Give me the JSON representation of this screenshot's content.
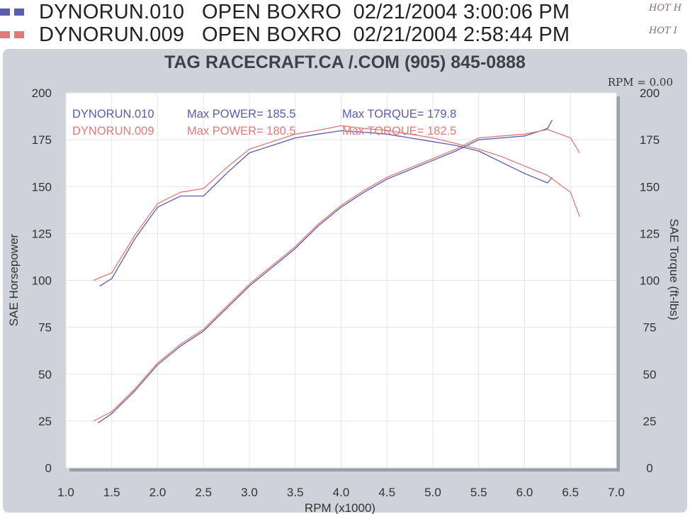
{
  "legend": [
    {
      "name": "DYNORUN.010",
      "mode": "OPEN BOXRO",
      "datetime": "02/21/2004 3:00:06 PM",
      "note": "HOT H",
      "color": "#5b5bb0"
    },
    {
      "name": "DYNORUN.009",
      "mode": "OPEN BOXRO",
      "datetime": "02/21/2004 2:58:44 PM",
      "note": "HOT I",
      "color": "#e07a7a"
    }
  ],
  "chart_data": {
    "type": "line",
    "title": "TAG RACECRAFT.CA /.COM (905) 845-0888",
    "readout": "RPM = 0.00",
    "xlabel": "RPM (x1000)",
    "ylabel": "SAE Horsepower",
    "y2label": "SAE Torque (ft-lbs)",
    "xlim": [
      1.0,
      7.0
    ],
    "ylim": [
      0,
      200
    ],
    "y2lim": [
      0,
      200
    ],
    "xticks": [
      "1.0",
      "1.5",
      "2.0",
      "2.5",
      "3.0",
      "3.5",
      "4.0",
      "4.5",
      "5.0",
      "5.5",
      "6.0",
      "6.5",
      "7.0"
    ],
    "yticks": [
      "0",
      "25",
      "50",
      "75",
      "100",
      "125",
      "150",
      "175",
      "200"
    ],
    "y2ticks": [
      "0",
      "25",
      "50",
      "75",
      "100",
      "125",
      "150",
      "175",
      "200"
    ],
    "grid": true,
    "annotations": [
      {
        "run": "DYNORUN.010",
        "power_label": "Max POWER= 185.5",
        "torque_label": "Max TORQUE= 179.8",
        "color": "#5b5bb0"
      },
      {
        "run": "DYNORUN.009",
        "power_label": "Max POWER= 180.5",
        "torque_label": "Max TORQUE= 182.5",
        "color": "#e07a7a"
      }
    ],
    "series": [
      {
        "name": "DYNORUN.010",
        "measure": "power",
        "color": "#5b5bb0",
        "x": [
          1.35,
          1.5,
          1.75,
          2.0,
          2.25,
          2.5,
          2.75,
          3.0,
          3.25,
          3.5,
          3.75,
          4.0,
          4.25,
          4.5,
          4.75,
          5.0,
          5.25,
          5.5,
          5.75,
          6.0,
          6.25,
          6.3
        ],
        "y": [
          24,
          29,
          41,
          55,
          65,
          73,
          85,
          97,
          107,
          117,
          129,
          139,
          147,
          154,
          159,
          164,
          169,
          175,
          176,
          177,
          181,
          185.5
        ]
      },
      {
        "name": "DYNORUN.009",
        "measure": "power",
        "color": "#e07a7a",
        "x": [
          1.3,
          1.5,
          1.75,
          2.0,
          2.25,
          2.5,
          2.75,
          3.0,
          3.25,
          3.5,
          3.75,
          4.0,
          4.25,
          4.5,
          4.75,
          5.0,
          5.25,
          5.5,
          5.75,
          6.0,
          6.25,
          6.5,
          6.6
        ],
        "y": [
          25,
          30,
          42,
          56,
          66,
          74,
          86,
          98,
          108,
          118,
          130,
          140,
          148,
          155,
          160,
          165,
          170,
          176,
          177,
          178,
          180.5,
          176,
          168
        ]
      },
      {
        "name": "DYNORUN.010",
        "measure": "torque",
        "color": "#5b5bb0",
        "x": [
          1.37,
          1.5,
          1.75,
          2.0,
          2.25,
          2.5,
          2.75,
          3.0,
          3.25,
          3.5,
          3.75,
          4.0,
          4.25,
          4.5,
          4.75,
          5.0,
          5.25,
          5.5,
          5.75,
          6.0,
          6.25,
          6.3
        ],
        "y": [
          97,
          101,
          122,
          139,
          145,
          145,
          157,
          168,
          172,
          176,
          178,
          179.8,
          179,
          178,
          176,
          174,
          172,
          169,
          163,
          157,
          152,
          155
        ]
      },
      {
        "name": "DYNORUN.009",
        "measure": "torque",
        "color": "#e07a7a",
        "x": [
          1.3,
          1.5,
          1.75,
          2.0,
          2.25,
          2.5,
          2.75,
          3.0,
          3.25,
          3.5,
          3.75,
          4.0,
          4.25,
          4.5,
          4.75,
          5.0,
          5.25,
          5.5,
          5.75,
          6.0,
          6.25,
          6.5,
          6.6
        ],
        "y": [
          100,
          104,
          124,
          141,
          147,
          149,
          160,
          170,
          174,
          178,
          180,
          182.5,
          181,
          180,
          178,
          176,
          173,
          170,
          166,
          161,
          156,
          147,
          134
        ]
      }
    ]
  }
}
